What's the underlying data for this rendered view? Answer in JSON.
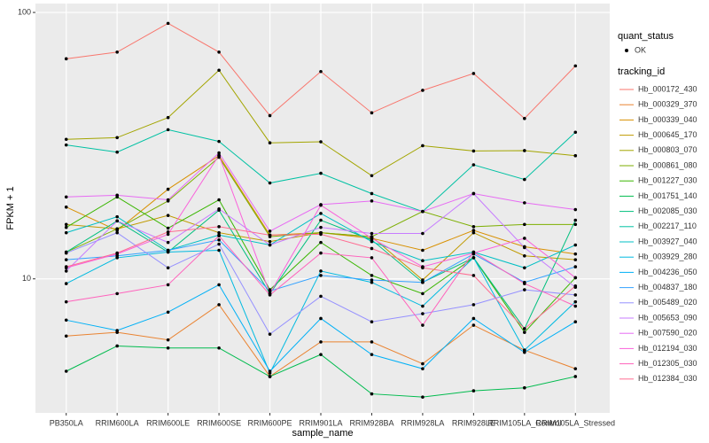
{
  "chart_data": {
    "type": "line",
    "log_scale": true,
    "grid": true,
    "x_label": "sample_name",
    "y_label": "FPKM + 1",
    "categories": [
      "PB350LA",
      "RRIM600LA",
      "RRIM600LE",
      "RRIM600SE",
      "RRIM600PE",
      "RRIM901LA",
      "RRIM928BA",
      "RRIM928LA",
      "RRIM928LE",
      "RRIM105LA_Control",
      "RRIM105LA_Stressed"
    ],
    "ylim": [
      3.14,
      108
    ],
    "yticks": [
      10,
      100
    ],
    "point_legend_title": "quant_status",
    "point_legend_label": "OK",
    "point_color": "#000000",
    "legend_title": "tracking_id",
    "series": [
      {
        "name": "Hb_000172_430",
        "color": "#F8766D",
        "values": [
          67,
          71,
          91,
          71,
          41,
          60,
          42,
          51,
          59,
          40,
          63
        ]
      },
      {
        "name": "Hb_000329_370",
        "color": "#EA8331",
        "values": [
          6.1,
          6.3,
          5.9,
          8,
          4.3,
          5.8,
          5.8,
          4.8,
          6.7,
          5.4,
          4.6
        ]
      },
      {
        "name": "Hb_000339_040",
        "color": "#D89000",
        "values": [
          18.6,
          15.2,
          21.7,
          29,
          14.6,
          14.9,
          14.2,
          12.8,
          15.2,
          13.2,
          12.4
        ]
      },
      {
        "name": "Hb_000645_170",
        "color": "#C09B00",
        "values": [
          16,
          15.4,
          17.3,
          14.9,
          13.8,
          14.9,
          14.4,
          9.9,
          14.9,
          12.2,
          11.8
        ]
      },
      {
        "name": "Hb_000803_070",
        "color": "#A3A500",
        "values": [
          33.4,
          33.9,
          40.3,
          60.7,
          32.4,
          32.7,
          24.4,
          31.6,
          30.2,
          30.3,
          29
        ]
      },
      {
        "name": "Hb_000861_080",
        "color": "#7CAE00",
        "values": [
          12.6,
          15.4,
          19.6,
          28.6,
          14.4,
          14.9,
          14.4,
          17.9,
          15.7,
          16,
          16
        ]
      },
      {
        "name": "Hb_001227_030",
        "color": "#39B600",
        "values": [
          15.6,
          20.3,
          15.5,
          19.8,
          9.1,
          13.7,
          10.3,
          8.8,
          12,
          6.3,
          10.1
        ]
      },
      {
        "name": "Hb_001751_140",
        "color": "#00BB4E",
        "values": [
          4.5,
          5.6,
          5.5,
          5.5,
          4.3,
          5.2,
          3.7,
          3.6,
          3.8,
          3.9,
          4.3
        ]
      },
      {
        "name": "Hb_002085_030",
        "color": "#00BF7D",
        "values": [
          12.6,
          16.5,
          12.6,
          18.1,
          8.8,
          16.6,
          14,
          9.7,
          12,
          6.5,
          16.6
        ]
      },
      {
        "name": "Hb_002217_110",
        "color": "#00C1A3",
        "values": [
          31.8,
          29.9,
          36.3,
          32.8,
          22.9,
          24.9,
          20.9,
          17.9,
          26.8,
          23.6,
          35.5
        ]
      },
      {
        "name": "Hb_003927_040",
        "color": "#00BFC4",
        "values": [
          14.9,
          17.1,
          12.8,
          14.6,
          13.4,
          17.6,
          13.8,
          11.7,
          12.6,
          11,
          13.4
        ]
      },
      {
        "name": "Hb_003929_280",
        "color": "#00BAE0",
        "values": [
          9.6,
          12,
          12.6,
          12.8,
          4.43,
          10.7,
          9.7,
          7.9,
          12,
          5.4,
          8.2
        ]
      },
      {
        "name": "Hb_004236_050",
        "color": "#00B0F6",
        "values": [
          7,
          6.4,
          7.5,
          9.5,
          4.5,
          7.1,
          5.2,
          4.6,
          7.1,
          5.3,
          6.9
        ]
      },
      {
        "name": "Hb_004837_180",
        "color": "#35A2FF",
        "values": [
          11.8,
          12.2,
          12.8,
          14,
          9,
          10.3,
          9.9,
          9.7,
          12.4,
          9.7,
          11.1
        ]
      },
      {
        "name": "Hb_005489_020",
        "color": "#9590FF",
        "values": [
          12.5,
          14.9,
          11,
          13.5,
          6.2,
          8.6,
          6.9,
          7.4,
          8,
          9.1,
          8.7
        ]
      },
      {
        "name": "Hb_005653_090",
        "color": "#C77CFF",
        "values": [
          10.7,
          16.5,
          13.7,
          18.3,
          13.4,
          15.6,
          14.8,
          14.8,
          20.9,
          13.1,
          9.3
        ]
      },
      {
        "name": "Hb_007590_020",
        "color": "#E76BF3",
        "values": [
          20.3,
          20.6,
          19.8,
          29.7,
          15.1,
          19,
          19.6,
          17.9,
          20.9,
          19.3,
          18.2
        ]
      },
      {
        "name": "Hb_012194_030",
        "color": "#FA62DB",
        "values": [
          11,
          12.4,
          14.7,
          29.1,
          8.8,
          18.9,
          14.2,
          11.1,
          12.5,
          14.2,
          10.1
        ]
      },
      {
        "name": "Hb_012305_030",
        "color": "#FF62BC",
        "values": [
          8.2,
          8.8,
          9.5,
          14.5,
          8.7,
          12.5,
          12,
          6.7,
          12.6,
          9.6,
          7.9
        ]
      },
      {
        "name": "Hb_012384_030",
        "color": "#FF6C91",
        "values": [
          11.1,
          12.5,
          15,
          15.7,
          14.6,
          14.7,
          13,
          11,
          10.3,
          6.5,
          9.4
        ]
      }
    ]
  }
}
